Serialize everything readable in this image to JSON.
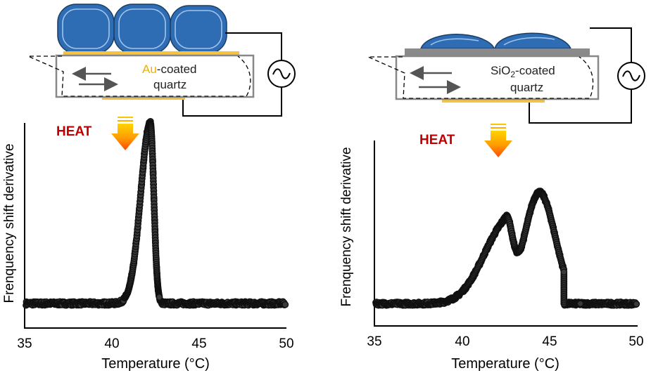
{
  "chart_data": [
    {
      "type": "scatter",
      "panel": "left",
      "substrate_label_main": "Au",
      "substrate_label_rest": "-coated",
      "substrate_label_line2": "quartz",
      "substrate_color": "#f5c242",
      "heat_label": "HEAT",
      "ylabel": "Frenquency shift derivative",
      "xlabel": "Temperature (°C)",
      "xlim": [
        35,
        50
      ],
      "ylim": [
        0,
        1
      ],
      "xticks": [
        "35",
        "40",
        "45",
        "50"
      ],
      "peaks": [
        {
          "center": 42.2,
          "height": 0.88,
          "width_left": 0.55,
          "width_right": 0.2
        }
      ],
      "baseline": 0.12,
      "cutoff": null
    },
    {
      "type": "scatter",
      "panel": "right",
      "substrate_label_main": "SiO",
      "substrate_label_sub": "2",
      "substrate_label_rest": "-coated",
      "substrate_label_line2": "quartz",
      "substrate_color": "#888888",
      "heat_label": "HEAT",
      "ylabel": "Frenquency shift derivative",
      "xlabel": "Temperature (°C)",
      "xlim": [
        35,
        50
      ],
      "ylim": [
        0,
        1
      ],
      "xticks": [
        "35",
        "40",
        "45",
        "50"
      ],
      "peaks": [
        {
          "center": 42.5,
          "height": 0.42,
          "width_left": 1.3,
          "width_right": 0.35
        },
        {
          "center": 44.4,
          "height": 0.6,
          "width_left": 0.85,
          "width_right": 0.9
        }
      ],
      "baseline": 0.12,
      "cutoff": 45.8
    }
  ],
  "colors": {
    "cell": "#2e6db4",
    "heat_text": "#c00000",
    "gold": "#f5c242",
    "marker": "#111111"
  }
}
